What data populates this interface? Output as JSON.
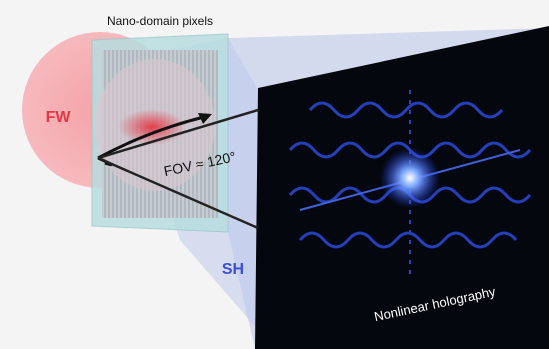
{
  "labels": {
    "plate": "Nano-domain pixels",
    "fw": "FW",
    "fov": "FOV ≈ 120°",
    "sh": "SH",
    "screen": "Nonlinear holography"
  }
}
